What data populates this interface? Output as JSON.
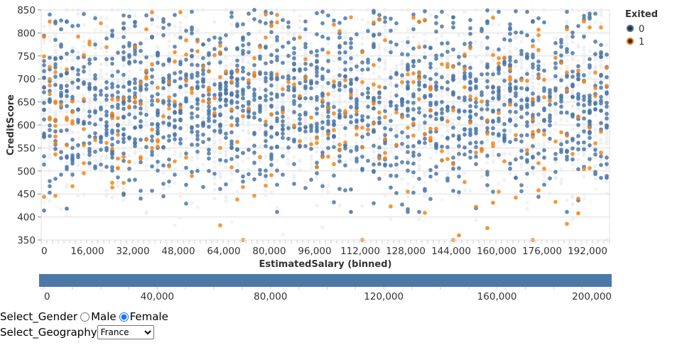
{
  "chart_data": {
    "type": "scatter",
    "title": "",
    "xlabel": "EstimatedSalary (binned)",
    "ylabel": "CreditScore",
    "xlim": [
      0,
      200000
    ],
    "ylim": [
      350,
      850
    ],
    "bin_step": 2000,
    "x_tick_labels": [
      "0",
      "16,000",
      "32,000",
      "48,000",
      "64,000",
      "80,000",
      "96,000",
      "112,000",
      "128,000",
      "144,000",
      "160,000",
      "176,000",
      "192,000"
    ],
    "x_tick_values": [
      0,
      16000,
      32000,
      48000,
      64000,
      80000,
      96000,
      112000,
      128000,
      144000,
      160000,
      176000,
      192000
    ],
    "y_tick_labels": [
      "350",
      "400",
      "450",
      "500",
      "550",
      "600",
      "650",
      "700",
      "750",
      "800",
      "850"
    ],
    "y_tick_values": [
      350,
      400,
      450,
      500,
      550,
      600,
      650,
      700,
      750,
      800,
      850
    ],
    "grid": true,
    "legend": {
      "title": "Exited",
      "placement": "top-right",
      "entries": [
        {
          "label": "0",
          "color": "#4c78a8"
        },
        {
          "label": "1",
          "color": "#f58518"
        }
      ]
    },
    "series": [
      {
        "name": "0",
        "color": "#4c78a8",
        "distribution": {
          "count": 1700,
          "mean": 652,
          "sd": 92,
          "min": 411,
          "max": 850
        }
      },
      {
        "name": "1",
        "color": "#f58518",
        "distribution": {
          "count": 320,
          "mean": 640,
          "sd": 100,
          "min": 350,
          "max": 850
        }
      }
    ],
    "background_points": {
      "label": "non-selected (faded)",
      "color": "#e8ecf2",
      "count": 2600,
      "mean": 650,
      "sd": 96
    },
    "notable_points": [
      {
        "x": 112000,
        "y": 350,
        "exited": 1
      },
      {
        "x": 146000,
        "y": 360,
        "exited": 1
      },
      {
        "x": 156000,
        "y": 376,
        "exited": 1
      },
      {
        "x": 172000,
        "y": 350,
        "exited": 1
      },
      {
        "x": 188000,
        "y": 408,
        "exited": 1
      },
      {
        "x": 108000,
        "y": 411,
        "exited": 0
      },
      {
        "x": 8000,
        "y": 418,
        "exited": 0
      },
      {
        "x": 122000,
        "y": 423,
        "exited": 1
      },
      {
        "x": 158000,
        "y": 431,
        "exited": 1
      },
      {
        "x": 6000,
        "y": 808,
        "exited": 0
      },
      {
        "x": 36000,
        "y": 808,
        "exited": 1
      },
      {
        "x": 102000,
        "y": 818,
        "exited": 1
      }
    ],
    "brush_axis": {
      "range": [
        0,
        200000
      ],
      "tick_labels": [
        "0",
        "40,000",
        "80,000",
        "120,000",
        "160,000",
        "200,000"
      ],
      "tick_values": [
        0,
        40000,
        80000,
        120000,
        160000,
        200000
      ],
      "minor_step": 10000,
      "bar_color": "#4c78a8"
    }
  },
  "controls": {
    "gender_label": "Select_Gender",
    "gender_options": [
      {
        "label": "Male",
        "checked": false
      },
      {
        "label": "Female",
        "checked": true
      }
    ],
    "geography_label": "Select_Geography",
    "geography_selected": "France"
  }
}
